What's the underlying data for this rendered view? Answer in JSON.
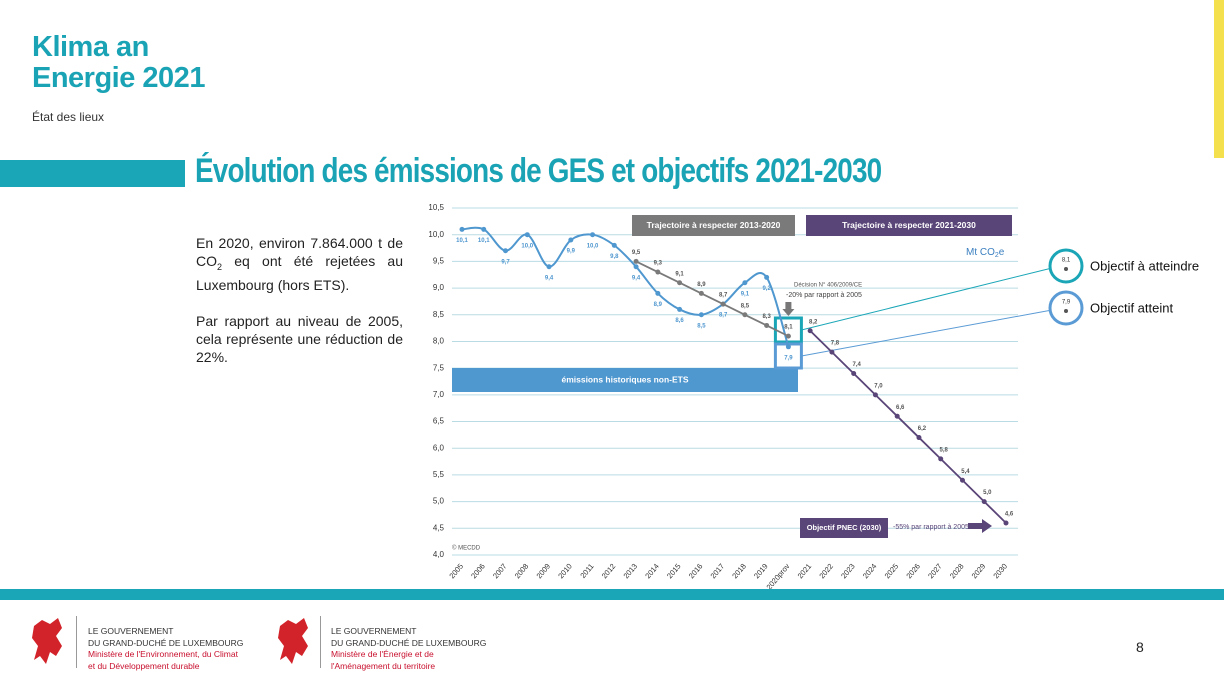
{
  "header": {
    "title_lines": [
      "Klima an",
      "Energie 2021"
    ],
    "subtitle": "État des lieux"
  },
  "slide_title": "Évolution des émissions de GES et objectifs 2021-2030",
  "body": {
    "paragraph1": [
      "En 2020, environ 7.864.000 t de CO",
      "2",
      " eq ont été rejetées au Luxembourg (hors ETS)."
    ],
    "paragraph2": "Par rapport au niveau de 2005, cela représente une réduction de 22%."
  },
  "chart_data": {
    "type": "line",
    "unit_label": [
      "Mt CO",
      "2",
      "e"
    ],
    "categories": [
      "2005",
      "2006",
      "2007",
      "2008",
      "2009",
      "2010",
      "2011",
      "2012",
      "2013",
      "2014",
      "2015",
      "2016",
      "2017",
      "2018",
      "2019",
      "2020prov",
      "2021",
      "2022",
      "2023",
      "2024",
      "2025",
      "2026",
      "2027",
      "2028",
      "2029",
      "2030"
    ],
    "ylim": [
      4.0,
      10.5
    ],
    "yticks": [
      {
        "value": 4.0,
        "label": "4,0"
      },
      {
        "value": 4.5,
        "label": "4,5"
      },
      {
        "value": 5.0,
        "label": "5,0"
      },
      {
        "value": 5.5,
        "label": "5,5"
      },
      {
        "value": 6.0,
        "label": "6,0"
      },
      {
        "value": 6.5,
        "label": "6,5"
      },
      {
        "value": 7.0,
        "label": "7,0"
      },
      {
        "value": 7.5,
        "label": "7,5"
      },
      {
        "value": 8.0,
        "label": "8,0"
      },
      {
        "value": 8.5,
        "label": "8,5"
      },
      {
        "value": 9.0,
        "label": "9,0"
      },
      {
        "value": 9.5,
        "label": "9,5"
      },
      {
        "value": 10.0,
        "label": "10,0"
      },
      {
        "value": 10.5,
        "label": "10,5"
      }
    ],
    "grid": true,
    "series": [
      {
        "name": "émissions historiques non-ETS",
        "color": "#4f97cf",
        "values": [
          10.1,
          10.1,
          9.7,
          10.0,
          9.4,
          9.9,
          10.0,
          9.8,
          9.4,
          8.9,
          8.6,
          8.5,
          8.7,
          9.1,
          9.2,
          7.9,
          null,
          null,
          null,
          null,
          null,
          null,
          null,
          null,
          null,
          null
        ],
        "value_labels": [
          "10,1",
          "10,1",
          "9,7",
          "10,0",
          "9,4",
          "9,9",
          "10,0",
          "9,8",
          "9,4",
          "8,9",
          "8,6",
          "8,5",
          "8,7",
          "9,1",
          "9,2",
          "7,9",
          null,
          null,
          null,
          null,
          null,
          null,
          null,
          null,
          null,
          null
        ]
      },
      {
        "name": "Trajectoire à respecter 2013-2020",
        "color": "#7a7a7a",
        "values": [
          null,
          null,
          null,
          null,
          null,
          null,
          null,
          null,
          9.5,
          9.3,
          9.1,
          8.9,
          8.7,
          8.5,
          8.3,
          8.1,
          null,
          null,
          null,
          null,
          null,
          null,
          null,
          null,
          null,
          null
        ],
        "value_labels": [
          null,
          null,
          null,
          null,
          null,
          null,
          null,
          null,
          "9,5",
          "9,3",
          "9,1",
          "8,9",
          "8,7",
          "8,5",
          "8,3",
          "8,1",
          null,
          null,
          null,
          null,
          null,
          null,
          null,
          null,
          null,
          null
        ]
      },
      {
        "name": "Trajectoire à respecter 2021-2030",
        "color": "#5a4578",
        "values": [
          null,
          null,
          null,
          null,
          null,
          null,
          null,
          null,
          null,
          null,
          null,
          null,
          null,
          null,
          null,
          null,
          8.2,
          7.8,
          7.4,
          7.0,
          6.6,
          6.2,
          5.8,
          5.4,
          5.0,
          4.6
        ],
        "value_labels": [
          null,
          null,
          null,
          null,
          null,
          null,
          null,
          null,
          null,
          null,
          null,
          null,
          null,
          null,
          null,
          null,
          "8,2",
          "7,8",
          "7,4",
          "7,0",
          "6,6",
          "6,2",
          "5,8",
          "5,4",
          "5,0",
          "4,6"
        ]
      }
    ],
    "annotations": {
      "decision": "Décision N° 406/2009/CE",
      "target_2020": "-20% par rapport à 2005",
      "pnec": "Objectif PNEC (2030)",
      "target_2030": "-55% par rapport à 2005",
      "copyright": "© MECDD"
    },
    "legend": [
      {
        "label": "Objectif à atteindre",
        "icon_label": "8,1"
      },
      {
        "label": "Objectif atteint",
        "icon_label": "7,9"
      }
    ]
  },
  "footer": {
    "org1": [
      "LE GOUVERNEMENT",
      "DU GRAND-DUCHÉ DE LUXEMBOURG",
      "Ministère de l'Environnement, du Climat",
      "et du Développement durable"
    ],
    "org2": [
      "LE GOUVERNEMENT",
      "DU GRAND-DUCHÉ DE LUXEMBOURG",
      "Ministère de l'Énergie et de",
      "l'Aménagement du territoire"
    ],
    "page_number": "8"
  }
}
